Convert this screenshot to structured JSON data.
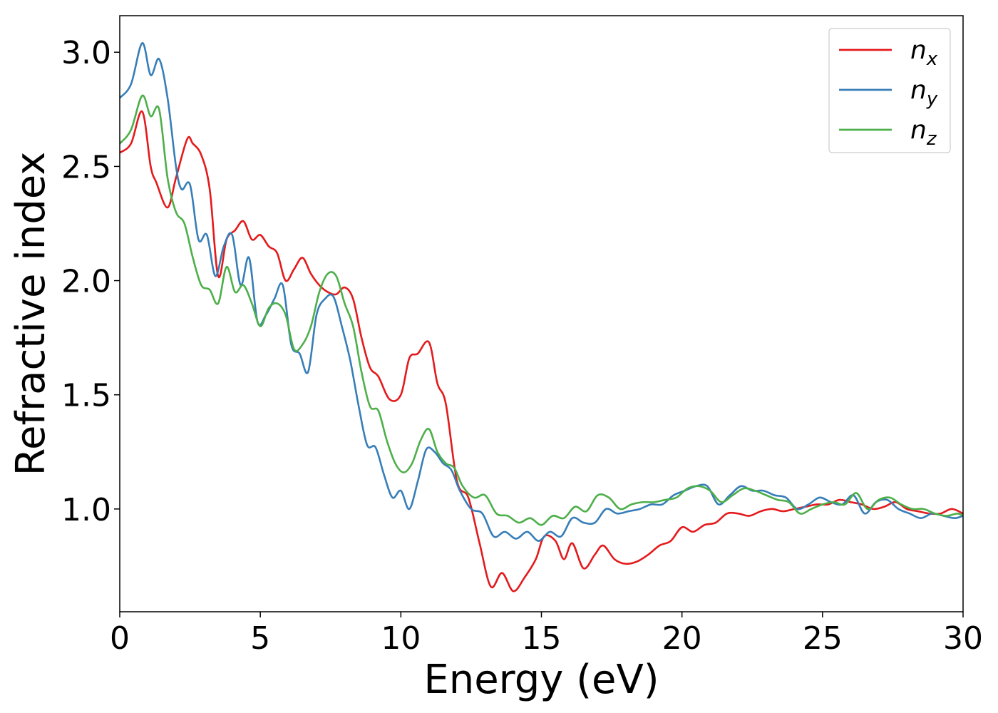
{
  "chart_data": {
    "type": "line",
    "title": "",
    "xlabel": "Energy (eV)",
    "ylabel": "Refractive index",
    "xlim": [
      0,
      30
    ],
    "ylim": [
      0.55,
      3.16
    ],
    "xticks": [
      0,
      5,
      10,
      15,
      20,
      25,
      30
    ],
    "xtick_labels": [
      "0",
      "5",
      "10",
      "15",
      "20",
      "25",
      "30"
    ],
    "yticks": [
      1.0,
      1.5,
      2.0,
      2.5,
      3.0
    ],
    "ytick_labels": [
      "1.0",
      "1.5",
      "2.0",
      "2.5",
      "3.0"
    ],
    "grid": false,
    "legend_position": "top-right",
    "series": [
      {
        "name": "n",
        "subscript": "x",
        "color": "#e41a1c",
        "x": [
          0,
          0.4,
          0.8,
          1.1,
          1.3,
          1.7,
          2.0,
          2.4,
          2.6,
          2.9,
          3.2,
          3.5,
          3.8,
          4.1,
          4.4,
          4.7,
          5.0,
          5.3,
          5.6,
          5.9,
          6.2,
          6.5,
          6.8,
          7.1,
          7.4,
          7.7,
          8.0,
          8.3,
          8.6,
          8.9,
          9.2,
          9.6,
          10.0,
          10.3,
          10.6,
          11.0,
          11.3,
          11.6,
          12.0,
          12.4,
          12.8,
          13.2,
          13.6,
          14.0,
          14.4,
          14.8,
          15.1,
          15.5,
          15.8,
          16.1,
          16.5,
          16.9,
          17.2,
          17.6,
          18.0,
          18.4,
          18.8,
          19.2,
          19.6,
          20.0,
          20.4,
          20.8,
          21.2,
          21.6,
          22.0,
          22.4,
          22.8,
          23.2,
          23.6,
          24.0,
          24.4,
          24.8,
          25.2,
          25.6,
          26.0,
          26.4,
          26.8,
          27.2,
          27.6,
          28.0,
          28.4,
          28.8,
          29.2,
          29.6,
          30.0
        ],
        "y": [
          2.56,
          2.6,
          2.74,
          2.5,
          2.43,
          2.32,
          2.45,
          2.62,
          2.6,
          2.55,
          2.4,
          2.02,
          2.18,
          2.22,
          2.26,
          2.18,
          2.2,
          2.15,
          2.12,
          2.0,
          2.05,
          2.1,
          2.03,
          1.98,
          1.95,
          1.94,
          1.97,
          1.92,
          1.75,
          1.62,
          1.58,
          1.48,
          1.5,
          1.66,
          1.68,
          1.73,
          1.55,
          1.46,
          1.12,
          1.05,
          0.85,
          0.66,
          0.72,
          0.64,
          0.7,
          0.78,
          0.88,
          0.86,
          0.78,
          0.85,
          0.74,
          0.8,
          0.84,
          0.78,
          0.76,
          0.77,
          0.8,
          0.84,
          0.86,
          0.92,
          0.9,
          0.93,
          0.94,
          0.98,
          0.98,
          0.97,
          0.99,
          1.0,
          0.99,
          1.0,
          1.01,
          1.02,
          1.02,
          1.04,
          1.03,
          1.02,
          1.0,
          1.01,
          1.03,
          1.0,
          0.99,
          0.98,
          0.98,
          1.0,
          0.98
        ]
      },
      {
        "name": "n",
        "subscript": "y",
        "color": "#377eb8",
        "x": [
          0,
          0.4,
          0.8,
          1.1,
          1.4,
          1.7,
          2.0,
          2.2,
          2.5,
          2.8,
          3.1,
          3.4,
          3.7,
          4.0,
          4.3,
          4.6,
          4.9,
          5.2,
          5.5,
          5.8,
          6.1,
          6.4,
          6.7,
          7.0,
          7.3,
          7.6,
          7.9,
          8.2,
          8.5,
          8.8,
          9.1,
          9.4,
          9.7,
          10.0,
          10.3,
          10.6,
          10.9,
          11.2,
          11.5,
          11.8,
          12.1,
          12.5,
          12.9,
          13.3,
          13.7,
          14.1,
          14.5,
          14.9,
          15.3,
          15.7,
          16.1,
          16.5,
          16.9,
          17.3,
          17.7,
          18.1,
          18.5,
          18.9,
          19.3,
          19.7,
          20.1,
          20.5,
          20.9,
          21.3,
          21.7,
          22.1,
          22.5,
          22.9,
          23.3,
          23.7,
          24.1,
          24.5,
          24.9,
          25.3,
          25.7,
          26.1,
          26.5,
          26.9,
          27.3,
          27.7,
          28.1,
          28.5,
          28.9,
          29.3,
          29.7,
          30.0
        ],
        "y": [
          2.8,
          2.86,
          3.04,
          2.9,
          2.97,
          2.8,
          2.5,
          2.4,
          2.42,
          2.18,
          2.2,
          2.02,
          2.15,
          2.2,
          1.98,
          2.1,
          1.82,
          1.85,
          1.92,
          1.98,
          1.72,
          1.68,
          1.6,
          1.85,
          1.92,
          1.93,
          1.8,
          1.65,
          1.45,
          1.28,
          1.27,
          1.15,
          1.05,
          1.08,
          1.0,
          1.12,
          1.26,
          1.25,
          1.2,
          1.17,
          1.08,
          1.0,
          0.98,
          0.88,
          0.9,
          0.87,
          0.9,
          0.86,
          0.9,
          0.88,
          0.96,
          0.94,
          0.94,
          1.0,
          0.98,
          0.99,
          1.0,
          1.02,
          1.02,
          1.06,
          1.08,
          1.1,
          1.1,
          1.02,
          1.06,
          1.1,
          1.08,
          1.08,
          1.06,
          1.05,
          1.0,
          1.02,
          1.05,
          1.03,
          1.02,
          1.06,
          0.98,
          1.03,
          1.04,
          1.0,
          0.98,
          0.96,
          0.98,
          0.97,
          0.96,
          0.97
        ]
      },
      {
        "name": "n",
        "subscript": "z",
        "color": "#4daf4a",
        "x": [
          0,
          0.4,
          0.8,
          1.1,
          1.4,
          1.7,
          2.0,
          2.3,
          2.6,
          2.9,
          3.2,
          3.5,
          3.8,
          4.1,
          4.4,
          4.7,
          5.0,
          5.3,
          5.6,
          5.9,
          6.2,
          6.5,
          6.8,
          7.1,
          7.4,
          7.7,
          8.0,
          8.3,
          8.6,
          8.9,
          9.2,
          9.5,
          9.8,
          10.1,
          10.4,
          10.7,
          11.0,
          11.3,
          11.6,
          11.9,
          12.2,
          12.6,
          13.0,
          13.4,
          13.8,
          14.2,
          14.6,
          15.0,
          15.4,
          15.8,
          16.2,
          16.6,
          17.0,
          17.4,
          17.8,
          18.2,
          18.6,
          19.0,
          19.4,
          19.8,
          20.2,
          20.6,
          21.0,
          21.4,
          21.8,
          22.2,
          22.6,
          23.0,
          23.4,
          23.8,
          24.2,
          24.6,
          25.0,
          25.4,
          25.8,
          26.2,
          26.6,
          27.0,
          27.4,
          27.8,
          28.2,
          28.6,
          29.0,
          29.4,
          29.8,
          30.0
        ],
        "y": [
          2.6,
          2.66,
          2.81,
          2.72,
          2.75,
          2.45,
          2.3,
          2.25,
          2.1,
          1.98,
          1.96,
          1.9,
          2.06,
          1.95,
          1.98,
          1.9,
          1.8,
          1.88,
          1.9,
          1.85,
          1.7,
          1.72,
          1.8,
          1.95,
          2.03,
          2.02,
          1.9,
          1.8,
          1.6,
          1.45,
          1.43,
          1.3,
          1.2,
          1.16,
          1.2,
          1.3,
          1.35,
          1.25,
          1.2,
          1.18,
          1.1,
          1.05,
          1.06,
          0.98,
          0.97,
          0.94,
          0.96,
          0.93,
          0.97,
          0.96,
          1.01,
          0.99,
          1.06,
          1.05,
          1.0,
          1.02,
          1.03,
          1.03,
          1.04,
          1.05,
          1.09,
          1.1,
          1.08,
          1.03,
          1.06,
          1.09,
          1.08,
          1.06,
          1.04,
          1.03,
          0.98,
          1.0,
          1.02,
          1.03,
          1.02,
          1.07,
          1.0,
          1.04,
          1.05,
          1.02,
          1.0,
          1.0,
          0.98,
          0.97,
          0.98,
          0.97
        ]
      }
    ]
  }
}
